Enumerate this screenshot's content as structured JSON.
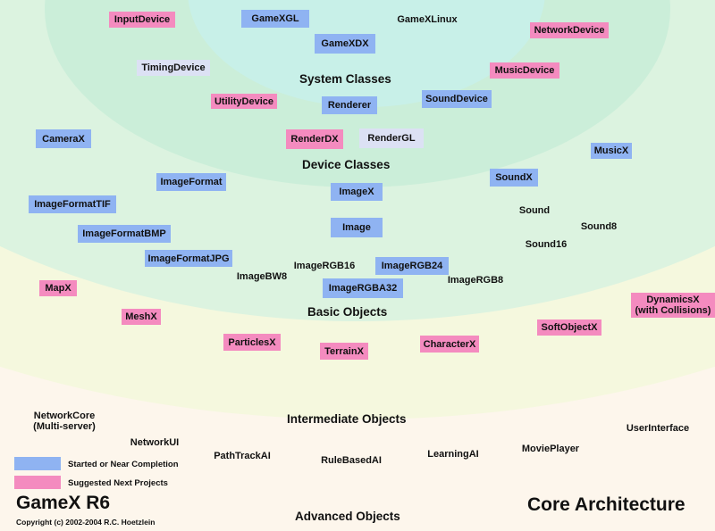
{
  "title": "GameX R6",
  "subtitle": "Core Architecture",
  "copyright": "Copyright (c) 2002-2004 R.C. Hoetzlein",
  "colors": {
    "started": "#8fb3f2",
    "suggested": "#f48bbf",
    "other": "#dce1f4"
  },
  "layers": [
    {
      "name": "System Classes"
    },
    {
      "name": "Device Classes"
    },
    {
      "name": "Basic Objects"
    },
    {
      "name": "Intermediate Objects"
    },
    {
      "name": "Advanced Objects"
    }
  ],
  "legend": [
    {
      "label": "Started or Near Completion",
      "status": "started"
    },
    {
      "label": "Suggested Next Projects",
      "status": "suggested"
    }
  ],
  "modules": [
    {
      "label": "InputDevice",
      "status": "suggested"
    },
    {
      "label": "GameXGL",
      "status": "started"
    },
    {
      "label": "GameXLinux",
      "status": "plain"
    },
    {
      "label": "NetworkDevice",
      "status": "suggested"
    },
    {
      "label": "GameXDX",
      "status": "started"
    },
    {
      "label": "TimingDevice",
      "status": "other"
    },
    {
      "label": "MusicDevice",
      "status": "suggested"
    },
    {
      "label": "UtilityDevice",
      "status": "suggested"
    },
    {
      "label": "Renderer",
      "status": "started"
    },
    {
      "label": "SoundDevice",
      "status": "started"
    },
    {
      "label": "CameraX",
      "status": "started"
    },
    {
      "label": "RenderDX",
      "status": "suggested"
    },
    {
      "label": "RenderGL",
      "status": "other"
    },
    {
      "label": "MusicX",
      "status": "started"
    },
    {
      "label": "ImageFormat",
      "status": "started"
    },
    {
      "label": "SoundX",
      "status": "started"
    },
    {
      "label": "ImageX",
      "status": "started"
    },
    {
      "label": "ImageFormatTIF",
      "status": "started"
    },
    {
      "label": "Sound",
      "status": "plain"
    },
    {
      "label": "Image",
      "status": "started"
    },
    {
      "label": "Sound8",
      "status": "plain"
    },
    {
      "label": "ImageFormatBMP",
      "status": "started"
    },
    {
      "label": "Sound16",
      "status": "plain"
    },
    {
      "label": "ImageFormatJPG",
      "status": "started"
    },
    {
      "label": "ImageRGB16",
      "status": "plain"
    },
    {
      "label": "ImageRGB24",
      "status": "started"
    },
    {
      "label": "ImageBW8",
      "status": "plain"
    },
    {
      "label": "ImageRGB8",
      "status": "plain"
    },
    {
      "label": "ImageRGBA32",
      "status": "started"
    },
    {
      "label": "MapX",
      "status": "suggested"
    },
    {
      "label": "DynamicsX\n(with Collisions)",
      "status": "suggested"
    },
    {
      "label": "MeshX",
      "status": "suggested"
    },
    {
      "label": "SoftObjectX",
      "status": "suggested"
    },
    {
      "label": "ParticlesX",
      "status": "suggested"
    },
    {
      "label": "CharacterX",
      "status": "suggested"
    },
    {
      "label": "TerrainX",
      "status": "suggested"
    },
    {
      "label": "NetworkCore\n(Multi-server)",
      "status": "plain"
    },
    {
      "label": "UserInterface",
      "status": "plain"
    },
    {
      "label": "NetworkUI",
      "status": "plain"
    },
    {
      "label": "MoviePlayer",
      "status": "plain"
    },
    {
      "label": "PathTrackAI",
      "status": "plain"
    },
    {
      "label": "LearningAI",
      "status": "plain"
    },
    {
      "label": "RuleBasedAI",
      "status": "plain"
    }
  ]
}
